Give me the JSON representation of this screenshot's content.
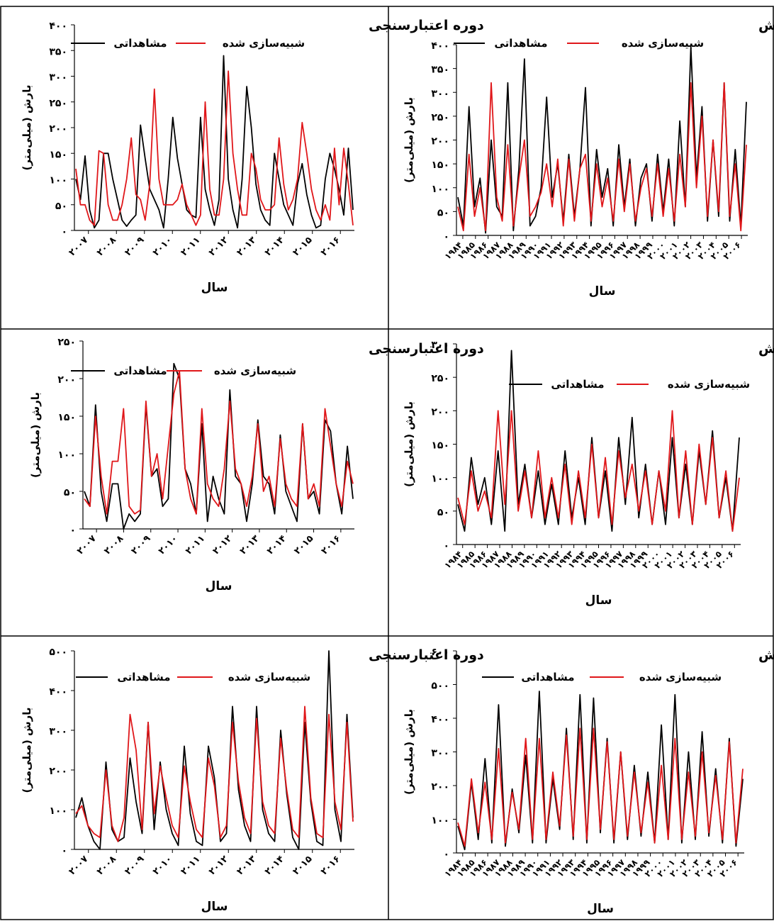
{
  "colors": {
    "observed": "#000000",
    "simulated": "#e0171a",
    "border": "#000000"
  },
  "common": {
    "xlabel": "سال",
    "ylabel": "بارش (میلی‌متر)",
    "legend_observed": "مشاهداتی",
    "legend_simulated": "شبیه‌سازی شده"
  },
  "chart_data": [
    {
      "type": "line",
      "title": "دوره اعتبارسنجی",
      "ylim": [
        0,
        400
      ],
      "yticks": [
        "۰",
        "۵۰",
        "۱۰۰",
        "۱۵۰",
        "۲۰۰",
        "۲۵۰",
        "۳۰۰",
        "۳۵۰",
        "۴۰۰"
      ],
      "xticks": [
        "۲۰۰۷",
        "۲۰۰۸",
        "۲۰۰۹",
        "۲۰۱۰",
        "۲۰۱۱",
        "۲۰۱۲",
        "۲۰۱۳",
        "۲۰۱۴",
        "۲۰۱۵",
        "۲۰۱۶"
      ],
      "series": [
        {
          "name": "مشاهداتی",
          "values": [
            100,
            60,
            145,
            40,
            5,
            20,
            150,
            150,
            100,
            60,
            20,
            8,
            20,
            30,
            205,
            140,
            80,
            60,
            40,
            5,
            100,
            220,
            140,
            90,
            40,
            30,
            25,
            220,
            80,
            40,
            10,
            60,
            340,
            100,
            40,
            5,
            100,
            280,
            200,
            90,
            40,
            20,
            10,
            150,
            100,
            50,
            30,
            10,
            90,
            130,
            70,
            30,
            5,
            10,
            100,
            150,
            120,
            80,
            30,
            160,
            40
          ]
        },
        {
          "name": "شبیه‌سازی شده",
          "values": [
            120,
            50,
            50,
            20,
            10,
            155,
            150,
            50,
            20,
            20,
            50,
            100,
            180,
            70,
            60,
            20,
            90,
            275,
            100,
            50,
            50,
            50,
            60,
            90,
            50,
            30,
            10,
            30,
            250,
            80,
            30,
            30,
            100,
            310,
            150,
            80,
            30,
            30,
            150,
            120,
            60,
            40,
            40,
            50,
            180,
            90,
            40,
            60,
            100,
            210,
            150,
            80,
            40,
            20,
            50,
            20,
            160,
            50,
            160,
            90,
            10
          ]
        }
      ]
    },
    {
      "type": "line",
      "title": "دوره آموزش",
      "ylim": [
        0,
        400
      ],
      "yticks": [
        "۰",
        "۵۰",
        "۱۰۰",
        "۱۵۰",
        "۲۰۰",
        "۲۵۰",
        "۳۰۰",
        "۳۵۰",
        "۴۰۰"
      ],
      "xticks": [
        "۱۹۸۴",
        "۱۹۸۵",
        "۱۹۸۶",
        "۱۹۸۷",
        "۱۹۸۸",
        "۱۹۸۹",
        "۱۹۹۰",
        "۱۹۹۱",
        "۱۹۹۲",
        "۱۹۹۳",
        "۱۹۹۴",
        "۱۹۹۵",
        "۱۹۹۶",
        "۱۹۹۷",
        "۱۹۹۸",
        "۱۹۹۹",
        "۲۰۰۰",
        "۲۰۰۱",
        "۲۰۰۲",
        "۲۰۰۳",
        "۲۰۰۴",
        "۲۰۰۵",
        "۲۰۰۶"
      ],
      "series": [
        {
          "name": "مشاهداتی",
          "values": [
            80,
            20,
            270,
            60,
            120,
            5,
            200,
            60,
            40,
            320,
            10,
            140,
            370,
            20,
            40,
            100,
            290,
            80,
            150,
            30,
            170,
            40,
            140,
            310,
            20,
            180,
            80,
            140,
            20,
            190,
            60,
            160,
            20,
            120,
            150,
            30,
            170,
            50,
            160,
            20,
            240,
            60,
            395,
            120,
            270,
            30,
            200,
            40,
            320,
            30,
            180,
            20,
            280
          ]
        },
        {
          "name": "شبیه‌سازی شده",
          "values": [
            60,
            10,
            170,
            40,
            100,
            10,
            320,
            80,
            30,
            190,
            20,
            120,
            200,
            40,
            60,
            90,
            150,
            60,
            160,
            20,
            160,
            30,
            140,
            170,
            30,
            150,
            60,
            120,
            30,
            160,
            50,
            150,
            30,
            100,
            140,
            40,
            150,
            40,
            140,
            30,
            170,
            60,
            320,
            100,
            250,
            40,
            200,
            50,
            320,
            40,
            150,
            10,
            190
          ]
        }
      ]
    },
    {
      "type": "line",
      "title": "دوره اعتبارسنجی",
      "ylim": [
        0,
        250
      ],
      "yticks": [
        "۰",
        "۵۰",
        "۱۰۰",
        "۱۵۰",
        "۲۰۰",
        "۲۵۰"
      ],
      "xticks": [
        "۲۰۰۷",
        "۲۰۰۸",
        "۲۰۰۹",
        "۲۰۱۰",
        "۲۰۱۱",
        "۲۰۱۲",
        "۲۰۱۳",
        "۲۰۱۴",
        "۲۰۱۵",
        "۲۰۱۶"
      ],
      "series": [
        {
          "name": "مشاهداتی",
          "values": [
            50,
            30,
            165,
            50,
            10,
            60,
            60,
            0,
            20,
            10,
            20,
            165,
            70,
            80,
            30,
            40,
            220,
            200,
            80,
            60,
            20,
            140,
            10,
            70,
            40,
            20,
            185,
            70,
            60,
            10,
            60,
            145,
            70,
            60,
            20,
            125,
            50,
            30,
            10,
            140,
            40,
            50,
            20,
            145,
            130,
            60,
            20,
            110,
            40
          ]
        },
        {
          "name": "شبیه‌سازی شده",
          "values": [
            40,
            30,
            150,
            70,
            20,
            90,
            90,
            160,
            30,
            20,
            25,
            170,
            70,
            100,
            40,
            110,
            180,
            210,
            80,
            40,
            20,
            160,
            60,
            40,
            30,
            80,
            170,
            80,
            60,
            30,
            70,
            140,
            50,
            70,
            30,
            120,
            60,
            40,
            30,
            140,
            40,
            60,
            30,
            160,
            110,
            60,
            30,
            90,
            60
          ]
        }
      ]
    },
    {
      "type": "line",
      "title": "دوره آموزش",
      "ylim": [
        0,
        300
      ],
      "yticks": [
        "۰",
        "۵۰",
        "۱۰۰",
        "۱۵۰",
        "۲۰۰",
        "۲۵۰",
        "۳۰۰"
      ],
      "xticks": [
        "۱۹۸۴",
        "۱۹۸۵",
        "۱۹۸۶",
        "۱۹۸۷",
        "۱۹۸۸",
        "۱۹۸۹",
        "۱۹۹۰",
        "۱۹۹۱",
        "۱۹۹۲",
        "۱۹۹۳",
        "۱۹۹۴",
        "۱۹۹۵",
        "۱۹۹۶",
        "۱۹۹۷",
        "۱۹۹۸",
        "۱۹۹۹",
        "۲۰۰۰",
        "۲۰۰۱",
        "۲۰۰۲",
        "۲۰۰۳",
        "۲۰۰۴",
        "۲۰۰۵",
        "۲۰۰۶"
      ],
      "series": [
        {
          "name": "مشاهداتی",
          "values": [
            60,
            20,
            130,
            60,
            100,
            30,
            140,
            20,
            290,
            60,
            120,
            40,
            110,
            30,
            90,
            30,
            140,
            40,
            100,
            30,
            160,
            40,
            110,
            20,
            160,
            60,
            190,
            40,
            120,
            30,
            110,
            30,
            160,
            40,
            120,
            30,
            140,
            60,
            170,
            40,
            100,
            20,
            160
          ]
        },
        {
          "name": "شبیه‌سازی شده",
          "values": [
            70,
            30,
            110,
            50,
            80,
            40,
            200,
            60,
            200,
            50,
            110,
            40,
            140,
            40,
            100,
            40,
            120,
            30,
            110,
            40,
            150,
            40,
            130,
            30,
            140,
            70,
            120,
            50,
            110,
            30,
            110,
            50,
            200,
            40,
            140,
            30,
            150,
            60,
            160,
            40,
            110,
            20,
            100
          ]
        }
      ]
    },
    {
      "type": "line",
      "title": "دوره اعتبارسنجی",
      "ylim": [
        0,
        500
      ],
      "yticks": [
        "۰",
        "۱۰۰",
        "۲۰۰",
        "۳۰۰",
        "۴۰۰",
        "۵۰۰"
      ],
      "xticks": [
        "۲۰۰۷",
        "۲۰۰۸",
        "۲۰۰۹",
        "۲۰۱۰",
        "۲۰۱۱",
        "۲۰۱۲",
        "۲۰۱۳",
        "۲۰۱۴",
        "۲۰۱۵",
        "۲۰۱۶"
      ],
      "series": [
        {
          "name": "مشاهداتی",
          "values": [
            80,
            130,
            60,
            20,
            0,
            220,
            50,
            20,
            30,
            230,
            120,
            40,
            320,
            50,
            220,
            100,
            40,
            10,
            260,
            90,
            20,
            10,
            260,
            180,
            20,
            40,
            360,
            150,
            60,
            20,
            360,
            100,
            40,
            20,
            300,
            140,
            30,
            0,
            320,
            120,
            20,
            10,
            500,
            100,
            20,
            340,
            80
          ]
        },
        {
          "name": "شبیه‌سازی شده",
          "values": [
            90,
            110,
            60,
            40,
            30,
            200,
            60,
            20,
            80,
            340,
            250,
            50,
            320,
            90,
            210,
            130,
            60,
            30,
            210,
            120,
            50,
            30,
            230,
            160,
            30,
            60,
            320,
            170,
            80,
            40,
            330,
            120,
            60,
            40,
            280,
            150,
            50,
            30,
            360,
            130,
            40,
            30,
            340,
            120,
            50,
            320,
            70
          ]
        }
      ]
    },
    {
      "type": "line",
      "title": "دوره آموزش",
      "ylim": [
        0,
        600
      ],
      "yticks": [
        "۰",
        "۱۰۰",
        "۲۰۰",
        "۳۰۰",
        "۴۰۰",
        "۵۰۰",
        "۶۰۰"
      ],
      "xticks": [
        "۱۹۸۴",
        "۱۹۸۵",
        "۱۹۸۶",
        "۱۹۸۷",
        "۱۹۸۸",
        "۱۹۸۹",
        "۱۹۹۰",
        "۱۹۹۱",
        "۱۹۹۲",
        "۱۹۹۳",
        "۱۹۹۴",
        "۱۹۹۵",
        "۱۹۹۶",
        "۱۹۹۷",
        "۱۹۹۸",
        "۱۹۹۹",
        "۲۰۰۰",
        "۲۰۰۱",
        "۲۰۰۲",
        "۲۰۰۳",
        "۲۰۰۴",
        "۲۰۰۵",
        "۲۰۰۶"
      ],
      "series": [
        {
          "name": "مشاهداتی",
          "values": [
            80,
            10,
            210,
            40,
            280,
            30,
            440,
            20,
            190,
            60,
            290,
            30,
            480,
            30,
            220,
            70,
            370,
            40,
            470,
            30,
            460,
            60,
            340,
            30,
            300,
            40,
            260,
            50,
            240,
            30,
            380,
            40,
            470,
            30,
            300,
            40,
            360,
            50,
            250,
            30,
            340,
            20,
            220
          ]
        },
        {
          "name": "شبیه‌سازی شده",
          "values": [
            90,
            20,
            220,
            60,
            210,
            40,
            310,
            30,
            180,
            70,
            340,
            40,
            340,
            40,
            240,
            80,
            350,
            50,
            370,
            40,
            370,
            70,
            330,
            40,
            300,
            50,
            240,
            60,
            210,
            30,
            260,
            40,
            340,
            40,
            240,
            50,
            300,
            60,
            230,
            40,
            330,
            30,
            250
          ]
        }
      ]
    }
  ]
}
